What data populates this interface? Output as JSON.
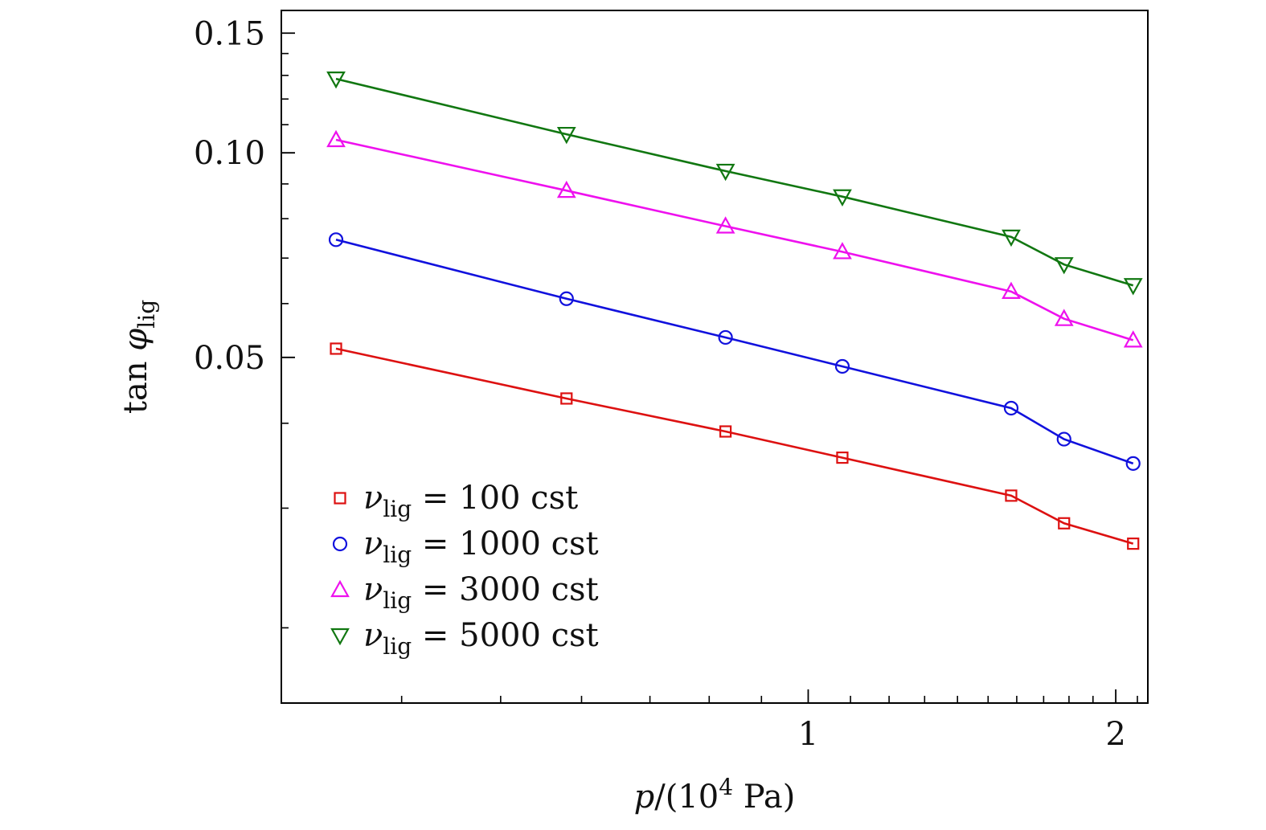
{
  "chart_data": {
    "type": "line",
    "title": "",
    "xlabel_parts": {
      "var": "p",
      "slash": "/(10",
      "exp": "4",
      "unit": " Pa)"
    },
    "ylabel_parts": {
      "func": "tan",
      "var": "φ",
      "sub": "lig"
    },
    "x_scale": "log",
    "y_scale": "log",
    "xlim": [
      0.305,
      2.15
    ],
    "ylim": [
      0.0155,
      0.162
    ],
    "x_major_ticks": [
      1,
      2
    ],
    "x_major_tick_labels": [
      "1",
      "2"
    ],
    "y_major_ticks": [
      0.05,
      0.1,
      0.15
    ],
    "y_major_tick_labels": [
      "0.05",
      "0.10",
      "0.15"
    ],
    "grid": false,
    "legend_position": "bottom-left",
    "series": [
      {
        "name_parts": {
          "sym": "ν",
          "sub": "lig",
          "rest": " = 100 cst"
        },
        "color": "#dd1111",
        "marker": "square",
        "x": [
          0.345,
          0.58,
          0.83,
          1.08,
          1.58,
          1.78,
          2.08
        ],
        "y": [
          0.0515,
          0.0435,
          0.0389,
          0.0356,
          0.0313,
          0.0285,
          0.0266
        ]
      },
      {
        "name_parts": {
          "sym": "ν",
          "sub": "lig",
          "rest": " = 1000 cst"
        },
        "color": "#1111dd",
        "marker": "circle",
        "x": [
          0.345,
          0.58,
          0.83,
          1.08,
          1.58,
          1.78,
          2.08
        ],
        "y": [
          0.0745,
          0.061,
          0.0535,
          0.0485,
          0.0421,
          0.0379,
          0.0349
        ]
      },
      {
        "name_parts": {
          "sym": "ν",
          "sub": "lig",
          "rest": " = 3000 cst"
        },
        "color": "#ee11ee",
        "marker": "triangle-up",
        "x": [
          0.345,
          0.58,
          0.83,
          1.08,
          1.58,
          1.78,
          2.08
        ],
        "y": [
          0.1045,
          0.088,
          0.078,
          0.0715,
          0.0625,
          0.057,
          0.053
        ]
      },
      {
        "name_parts": {
          "sym": "ν",
          "sub": "lig",
          "rest": " = 5000 cst"
        },
        "color": "#117711",
        "marker": "triangle-down",
        "x": [
          0.345,
          0.58,
          0.83,
          1.08,
          1.58,
          1.78,
          2.08
        ],
        "y": [
          0.1285,
          0.1065,
          0.094,
          0.0862,
          0.0752,
          0.0685,
          0.0638
        ]
      }
    ]
  }
}
